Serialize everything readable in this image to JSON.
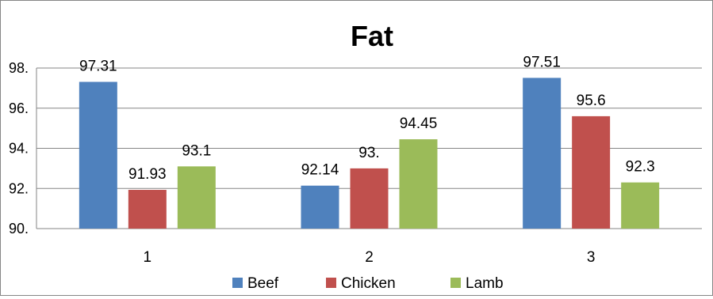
{
  "chart_data": {
    "type": "bar",
    "title": "Fat",
    "xlabel": "",
    "ylabel": "",
    "categories": [
      "1",
      "2",
      "3"
    ],
    "series": [
      {
        "name": "Beef",
        "color": "#4F81BD",
        "values": [
          97.31,
          92.14,
          97.51
        ],
        "labels": [
          "97.31",
          "92.14",
          "97.51"
        ]
      },
      {
        "name": "Chicken",
        "color": "#C0504D",
        "values": [
          91.93,
          93.0,
          95.6
        ],
        "labels": [
          "91.93",
          "93.",
          "95.6"
        ]
      },
      {
        "name": "Lamb",
        "color": "#9BBB59",
        "values": [
          93.1,
          94.45,
          92.3
        ],
        "labels": [
          "93.1",
          "94.45",
          "92.3"
        ]
      }
    ],
    "ylim": [
      90,
      98
    ],
    "yticks": [
      90,
      92,
      94,
      96,
      98
    ],
    "ytick_labels": [
      "90.",
      "92.",
      "94.",
      "96.",
      "98."
    ],
    "grid": true,
    "legend_position": "bottom"
  }
}
